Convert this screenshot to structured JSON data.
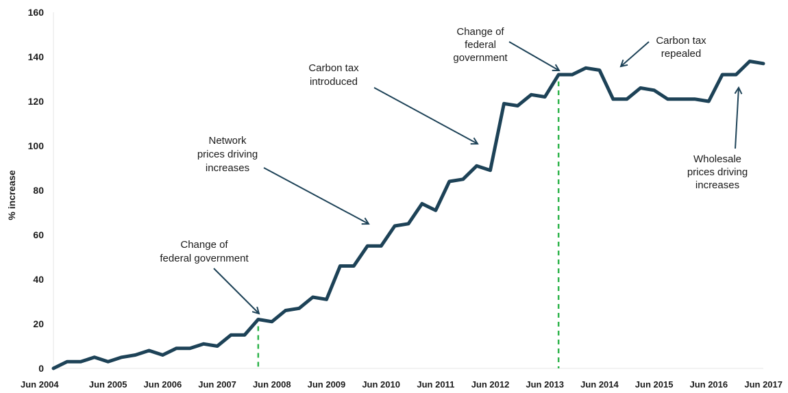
{
  "colors": {
    "line": "#1d4257",
    "annotation_arrow": "#1d4257",
    "marker": "#2db34a",
    "grid": "#e6e6e6"
  },
  "chart_data": {
    "type": "line",
    "xlabel": "",
    "ylabel": "% increase",
    "ylim": [
      0,
      160
    ],
    "y_ticks": [
      "0",
      "20",
      "40",
      "60",
      "80",
      "100",
      "120",
      "140",
      "160"
    ],
    "x_tick_labels": [
      "Jun 2004",
      "Jun 2005",
      "Jun 2006",
      "Jun 2007",
      "Jun 2008",
      "Jun 2009",
      "Jun 2010",
      "Jun 2011",
      "Jun 2012",
      "Jun 2013",
      "Jun 2014",
      "Jun 2015",
      "Jun 2016",
      "Jun 2017"
    ],
    "x_range": [
      2004.5,
      2017.5
    ],
    "grid": false,
    "series": [
      {
        "x": [
          2004.5,
          2004.75,
          2005.0,
          2005.25,
          2005.5,
          2005.75,
          2006.0,
          2006.25,
          2006.5,
          2006.75,
          2007.0,
          2007.25,
          2007.5,
          2007.75,
          2008.0,
          2008.25,
          2008.5,
          2008.75,
          2009.0,
          2009.25,
          2009.5,
          2009.75,
          2010.0,
          2010.25,
          2010.5,
          2010.75,
          2011.0,
          2011.25,
          2011.5,
          2011.75,
          2012.0,
          2012.25,
          2012.5,
          2012.75,
          2013.0,
          2013.25,
          2013.5,
          2013.75,
          2014.0,
          2014.25,
          2014.5,
          2014.75,
          2015.0,
          2015.25,
          2015.5,
          2015.75,
          2016.0,
          2016.25,
          2016.5,
          2016.75,
          2017.0,
          2017.25,
          2017.5
        ],
        "values": [
          0,
          3,
          3,
          5,
          3,
          5,
          6,
          8,
          6,
          9,
          9,
          11,
          10,
          15,
          15,
          22,
          21,
          26,
          27,
          32,
          31,
          46,
          46,
          55,
          55,
          64,
          65,
          74,
          71,
          84,
          85,
          91,
          89,
          119,
          118,
          123,
          122,
          132,
          132,
          135,
          134,
          121,
          121,
          126,
          125,
          121,
          121,
          121,
          120,
          132,
          132,
          138,
          137
        ]
      }
    ],
    "vertical_markers": [
      2008.25,
      2013.75
    ],
    "annotations": [
      {
        "lines": [
          "Change of",
          "federal government"
        ]
      },
      {
        "lines": [
          "Network",
          "prices driving",
          "increases"
        ]
      },
      {
        "lines": [
          "Carbon tax",
          "introduced"
        ]
      },
      {
        "lines": [
          "Change of",
          "federal",
          "government"
        ]
      },
      {
        "lines": [
          "Carbon tax",
          "repealed"
        ]
      },
      {
        "lines": [
          "Wholesale",
          "prices driving",
          "increases"
        ]
      }
    ]
  }
}
